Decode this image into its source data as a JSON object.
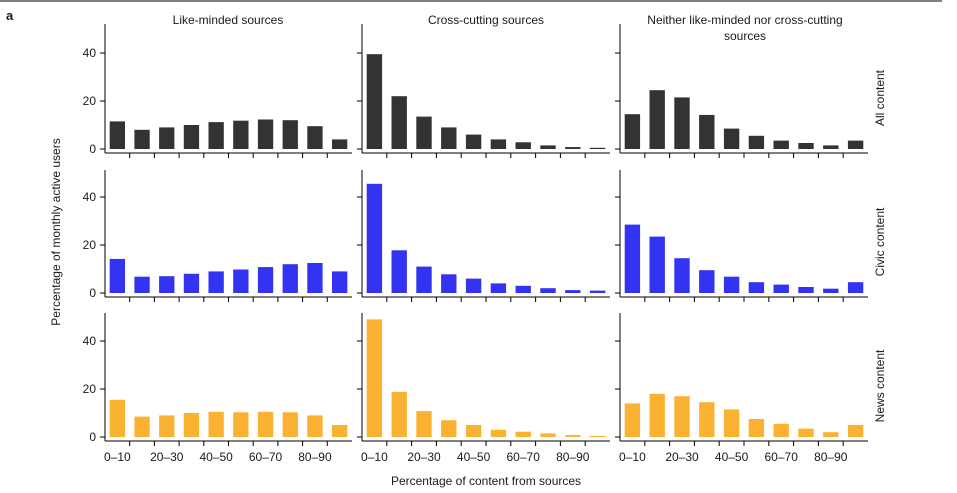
{
  "panel_label": "a",
  "columns": [
    "Like-minded sources",
    "Cross-cutting sources",
    "Neither like-minded nor cross-cutting sources"
  ],
  "rows": [
    "All content",
    "Civic content",
    "News content"
  ],
  "ylabel": "Percentage of monthly active users",
  "xlabel": "Percentage of content from sources",
  "xtick_labels": [
    "0–10",
    "20–30",
    "40–50",
    "60–70",
    "80–90"
  ],
  "yticks": [
    "0",
    "20",
    "40"
  ],
  "colors": {
    "All content": "#333333",
    "Civic content": "#3333f2",
    "News content": "#fbb232"
  },
  "chart_data": {
    "type": "bar",
    "categories": [
      "0–10",
      "10–20",
      "20–30",
      "30–40",
      "40–50",
      "50–60",
      "60–70",
      "70–80",
      "80–90",
      "90–100"
    ],
    "ylim": [
      0,
      50
    ],
    "panels": [
      {
        "row": "All content",
        "column": "Like-minded sources",
        "values": [
          11.5,
          8,
          9,
          10,
          11.2,
          11.8,
          12.3,
          12,
          9.5,
          4
        ]
      },
      {
        "row": "All content",
        "column": "Cross-cutting sources",
        "values": [
          39.5,
          22,
          13.5,
          9,
          6,
          4,
          2.8,
          1.5,
          0.8,
          0.5
        ]
      },
      {
        "row": "All content",
        "column": "Neither like-minded nor cross-cutting sources",
        "values": [
          14.5,
          24.5,
          21.5,
          14.2,
          8.5,
          5.5,
          3.5,
          2.5,
          1.5,
          3.5
        ]
      },
      {
        "row": "Civic content",
        "column": "Like-minded sources",
        "values": [
          14.2,
          6.8,
          7,
          8,
          9,
          9.8,
          10.8,
          12,
          12.5,
          9
        ]
      },
      {
        "row": "Civic content",
        "column": "Cross-cutting sources",
        "values": [
          45.5,
          17.8,
          11,
          7.8,
          6,
          4,
          3,
          2,
          1.2,
          1
        ]
      },
      {
        "row": "Civic content",
        "column": "Neither like-minded nor cross-cutting sources",
        "values": [
          28.5,
          23.5,
          14.5,
          9.5,
          6.8,
          4.5,
          3.5,
          2.5,
          1.8,
          4.5
        ]
      },
      {
        "row": "News content",
        "column": "Like-minded sources",
        "values": [
          15.5,
          8.5,
          9,
          10,
          10.5,
          10.3,
          10.5,
          10.3,
          9,
          5
        ]
      },
      {
        "row": "News content",
        "column": "Cross-cutting sources",
        "values": [
          49,
          18.8,
          10.8,
          7,
          5,
          3,
          2.2,
          1.5,
          0.8,
          0.5
        ]
      },
      {
        "row": "News content",
        "column": "Neither like-minded nor cross-cutting sources",
        "values": [
          14,
          18,
          17,
          14.5,
          11.5,
          7.5,
          5.5,
          3.5,
          2,
          5
        ]
      }
    ]
  }
}
